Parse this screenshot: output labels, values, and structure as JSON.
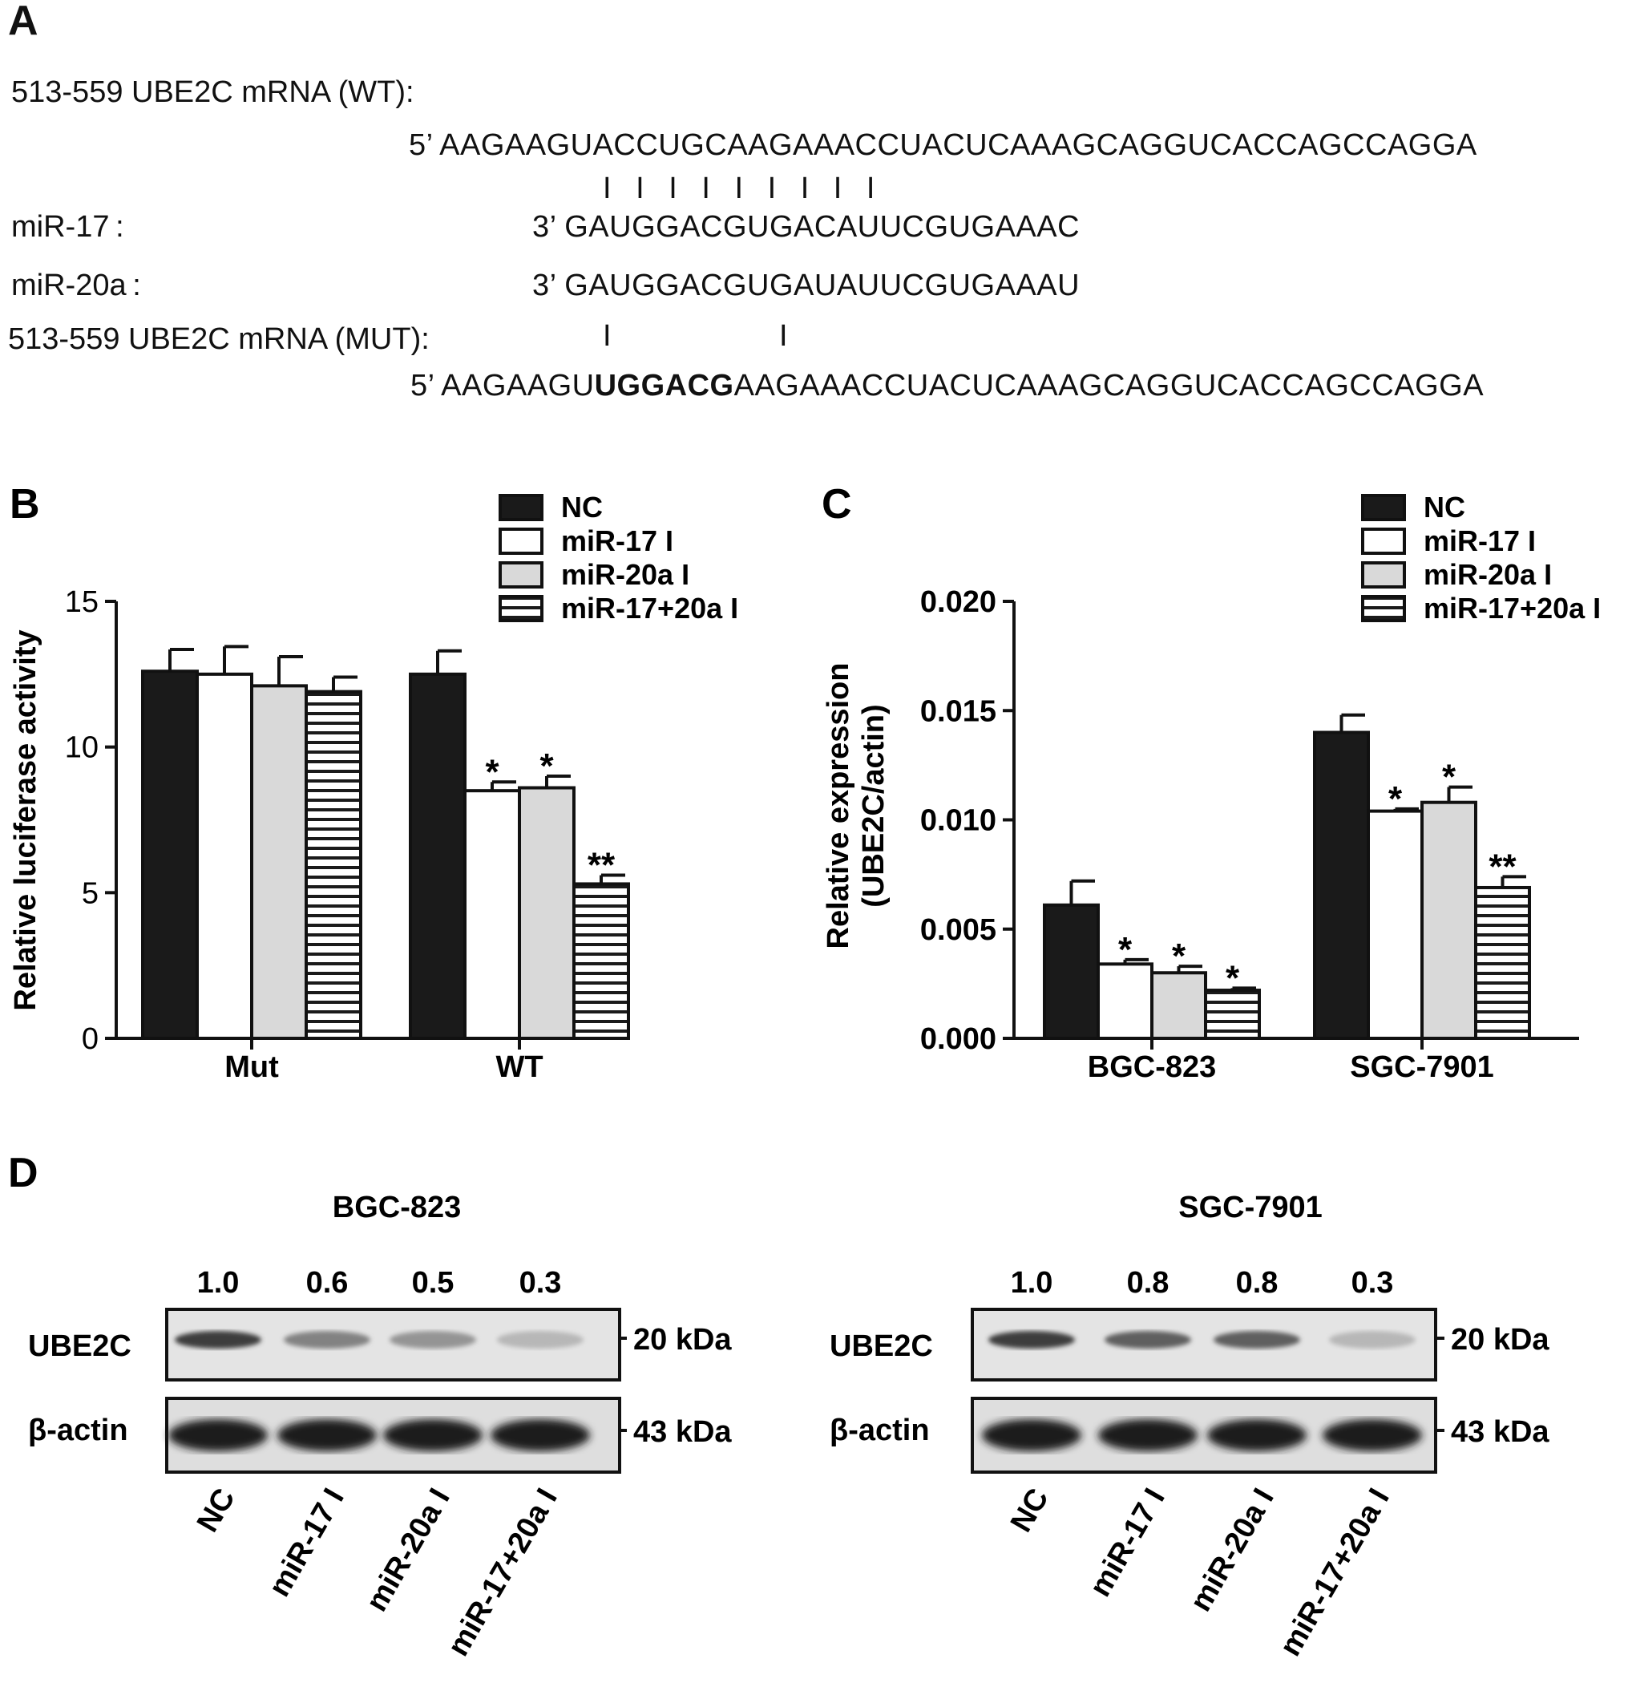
{
  "panelA": {
    "letter": "A",
    "wt_label": "513-559 UBE2C mRNA (WT):",
    "wt_prefix": "5’",
    "wt_seq": "AAGAAGUACCUGCAAGAAACCUACUCAAAGCAGGUCACCAGCCAGGA",
    "mir17_label": "miR-17 :",
    "mir17_prefix": "3’",
    "mir17_seq": "GAUGGACGUGACAUUCGUGAAAC",
    "mir20a_label": "miR-20a :",
    "mir20a_prefix": "3’",
    "mir20a_seq": "GAUGGACGUGAUAUUCGUGAAAU",
    "mut_label": "513-559 UBE2C mRNA (MUT):",
    "mut_prefix": "5’",
    "mut_seq_a": "AAGAAGU",
    "mut_seq_bold": "UGGACG",
    "mut_seq_b": "AAGAAACCUACUCAAAGCAGGUCACCAGCCAGGA",
    "wt_pairing": "I I I I I I I I I",
    "mut_pairing_left": "I",
    "mut_pairing_right": "I"
  },
  "colors": {
    "NC": "#1a1a1a",
    "miR-17 I": "#ffffff",
    "miR-20a I": "#d9d9d9",
    "miR-17+20a I": "striped"
  },
  "chart_data": [
    {
      "type": "bar",
      "panel": "B",
      "ylabel": "Relative luciferase activity",
      "xlabel": "",
      "ylim": [
        0,
        15
      ],
      "yticks": [
        "0",
        "5",
        "10",
        "15"
      ],
      "categories": [
        "Mut",
        "WT"
      ],
      "legend_placement": "top-right",
      "series": [
        {
          "name": "NC",
          "values": [
            12.6,
            12.5
          ],
          "errors": [
            0.75,
            0.8
          ],
          "sig": [
            "",
            ""
          ]
        },
        {
          "name": "miR-17 I",
          "values": [
            12.5,
            8.5
          ],
          "errors": [
            0.95,
            0.3
          ],
          "sig": [
            "",
            "*"
          ]
        },
        {
          "name": "miR-20a I",
          "values": [
            12.1,
            8.6
          ],
          "errors": [
            1.0,
            0.4
          ],
          "sig": [
            "",
            "*"
          ]
        },
        {
          "name": "miR-17+20a I",
          "values": [
            11.9,
            5.3
          ],
          "errors": [
            0.5,
            0.3
          ],
          "sig": [
            "",
            "**"
          ]
        }
      ]
    },
    {
      "type": "bar",
      "panel": "C",
      "ylabel": "Relative expression",
      "ylabel2": "(UBE2C/actin)",
      "xlabel": "",
      "ylim": [
        0,
        0.02
      ],
      "yticks": [
        "0.000",
        "0.005",
        "0.010",
        "0.015",
        "0.020"
      ],
      "categories": [
        "BGC-823",
        "SGC-7901"
      ],
      "legend_placement": "top-right",
      "series": [
        {
          "name": "NC",
          "values": [
            0.0061,
            0.014
          ],
          "errors": [
            0.0011,
            0.0008
          ],
          "sig": [
            "",
            ""
          ]
        },
        {
          "name": "miR-17 I",
          "values": [
            0.0034,
            0.0104
          ],
          "errors": [
            0.0002,
            0.0001
          ],
          "sig": [
            "*",
            "*"
          ]
        },
        {
          "name": "miR-20a I",
          "values": [
            0.003,
            0.0108
          ],
          "errors": [
            0.0003,
            0.0007
          ],
          "sig": [
            "*",
            "*"
          ]
        },
        {
          "name": "miR-17+20a I",
          "values": [
            0.0022,
            0.0069
          ],
          "errors": [
            0.0001,
            0.0005
          ],
          "sig": [
            "*",
            "**"
          ]
        }
      ]
    }
  ],
  "panelD": {
    "letter": "D",
    "blots": [
      {
        "title": "BGC-823",
        "quant": [
          "1.0",
          "0.6",
          "0.5",
          "0.3"
        ],
        "intensity": [
          1.0,
          0.6,
          0.5,
          0.3
        ],
        "row1_label": "UBE2C",
        "row2_label": "β-actin",
        "row1_size": "20 kDa",
        "row2_size": "43 kDa",
        "lanes": [
          "NC",
          "miR-17 I",
          "miR-20a I",
          "miR-17+20a I"
        ]
      },
      {
        "title": "SGC-7901",
        "quant": [
          "1.0",
          "0.8",
          "0.8",
          "0.3"
        ],
        "intensity": [
          1.0,
          0.8,
          0.8,
          0.3
        ],
        "row1_label": "UBE2C",
        "row2_label": "β-actin",
        "row1_size": "20 kDa",
        "row2_size": "43 kDa",
        "lanes": [
          "NC",
          "miR-17 I",
          "miR-20a I",
          "miR-17+20a I"
        ]
      }
    ]
  }
}
